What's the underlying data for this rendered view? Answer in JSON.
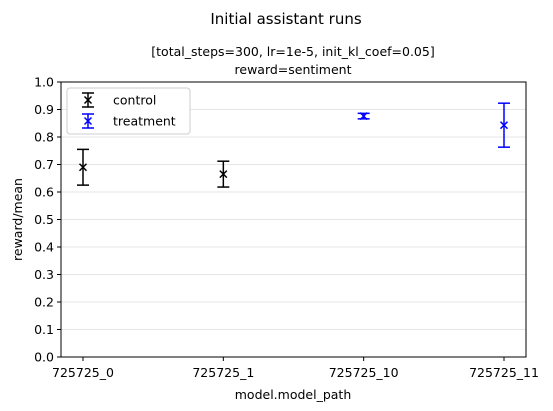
{
  "chart_data": {
    "type": "scatter",
    "suptitle": "Initial assistant runs",
    "title_line1": "[total_steps=300, lr=1e-5, init_kl_coef=0.05]",
    "title_line2": "reward=sentiment",
    "xlabel": "model.model_path",
    "ylabel": "reward/mean",
    "categories": [
      "725725_0",
      "725725_1",
      "725725_10",
      "725725_11"
    ],
    "ylim": [
      0,
      1.0
    ],
    "yticks": [
      "0.0",
      "0.1",
      "0.2",
      "0.3",
      "0.4",
      "0.5",
      "0.6",
      "0.7",
      "0.8",
      "0.9",
      "1.0"
    ],
    "grid": "horizontal",
    "legend_position": "top-left",
    "series": [
      {
        "name": "control",
        "color": "#000000",
        "points": [
          {
            "category": "725725_0",
            "y": 0.69,
            "err_low": 0.625,
            "err_high": 0.755
          },
          {
            "category": "725725_1",
            "y": 0.665,
            "err_low": 0.618,
            "err_high": 0.712
          }
        ]
      },
      {
        "name": "treatment",
        "color": "#0000ff",
        "points": [
          {
            "category": "725725_10",
            "y": 0.876,
            "err_low": 0.866,
            "err_high": 0.886
          },
          {
            "category": "725725_11",
            "y": 0.843,
            "err_low": 0.763,
            "err_high": 0.923
          }
        ]
      }
    ]
  }
}
